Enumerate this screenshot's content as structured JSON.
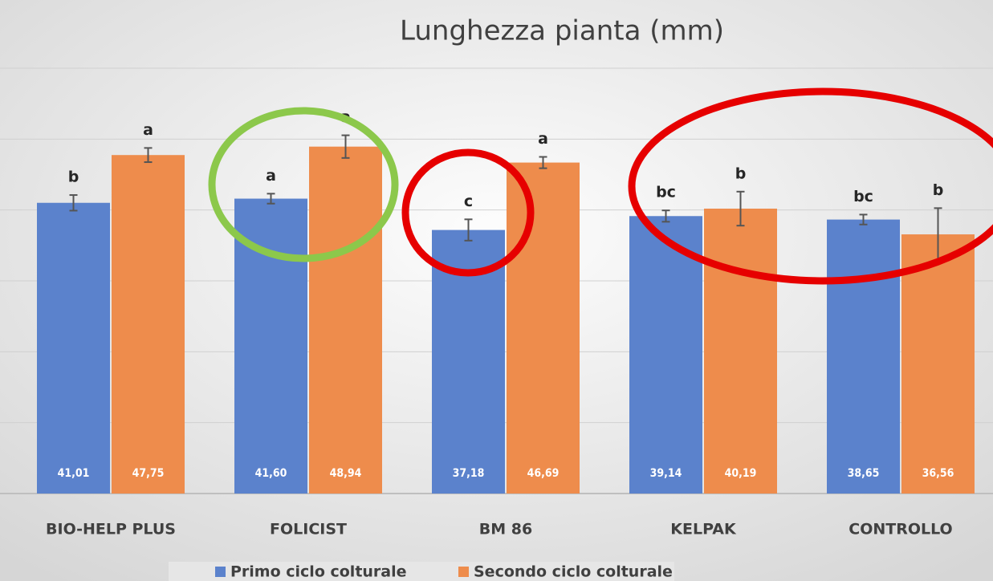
{
  "chart_data": {
    "type": "bar",
    "title": "Lunghezza pianta (mm)",
    "categories": [
      "BIO-HELP PLUS",
      "FOLICIST",
      "BM 86",
      "KELPAK",
      "CONTROLLO"
    ],
    "series": [
      {
        "name": "Primo ciclo colturale",
        "color": "#5b82cc",
        "values": [
          41.01,
          41.6,
          37.18,
          39.14,
          38.65
        ],
        "value_labels": [
          "41,01",
          "41,60",
          "37,18",
          "39,14",
          "38,65"
        ],
        "errors": [
          1.1,
          0.7,
          1.5,
          0.8,
          0.7
        ],
        "letters": [
          "b",
          "a",
          "c",
          "bc",
          "bc"
        ]
      },
      {
        "name": "Secondo ciclo colturale",
        "color": "#ee8c4c",
        "values": [
          47.75,
          48.94,
          46.69,
          40.19,
          36.56
        ],
        "value_labels": [
          "47,75",
          "48,94",
          "46,69",
          "40,19",
          "36,56"
        ],
        "errors": [
          1.0,
          1.6,
          0.8,
          2.4,
          3.7
        ],
        "letters": [
          "a",
          "a",
          "a",
          "b",
          "b"
        ]
      }
    ],
    "ylim": [
      0,
      60
    ],
    "yticks": [
      0,
      10,
      20,
      30,
      40,
      50,
      60
    ],
    "grid": true
  }
}
